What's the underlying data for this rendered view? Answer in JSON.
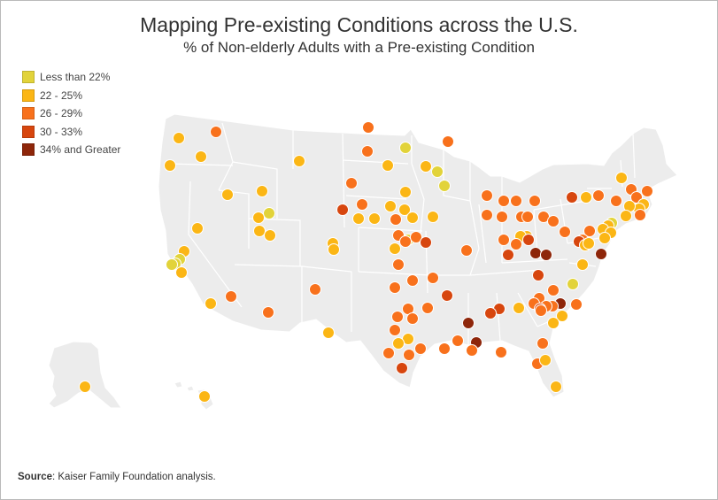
{
  "title": "Mapping Pre-existing Conditions across the U.S.",
  "subtitle": "% of Non-elderly Adults with a Pre-existing Condition",
  "legend": [
    {
      "label": "Less than 22%",
      "color": "#e2d33a"
    },
    {
      "label": "22 - 25%",
      "color": "#fbb615"
    },
    {
      "label": "26 - 29%",
      "color": "#f8711c"
    },
    {
      "label": "30 - 33%",
      "color": "#d7460e"
    },
    {
      "label": "34% and Greater",
      "color": "#8e260a"
    }
  ],
  "source": {
    "label": "Source",
    "text": ": Kaiser Family Foundation analysis."
  },
  "map_style": {
    "land": "#ececec",
    "border": "#ffffff",
    "dot_outline": "#ffffff"
  }
}
